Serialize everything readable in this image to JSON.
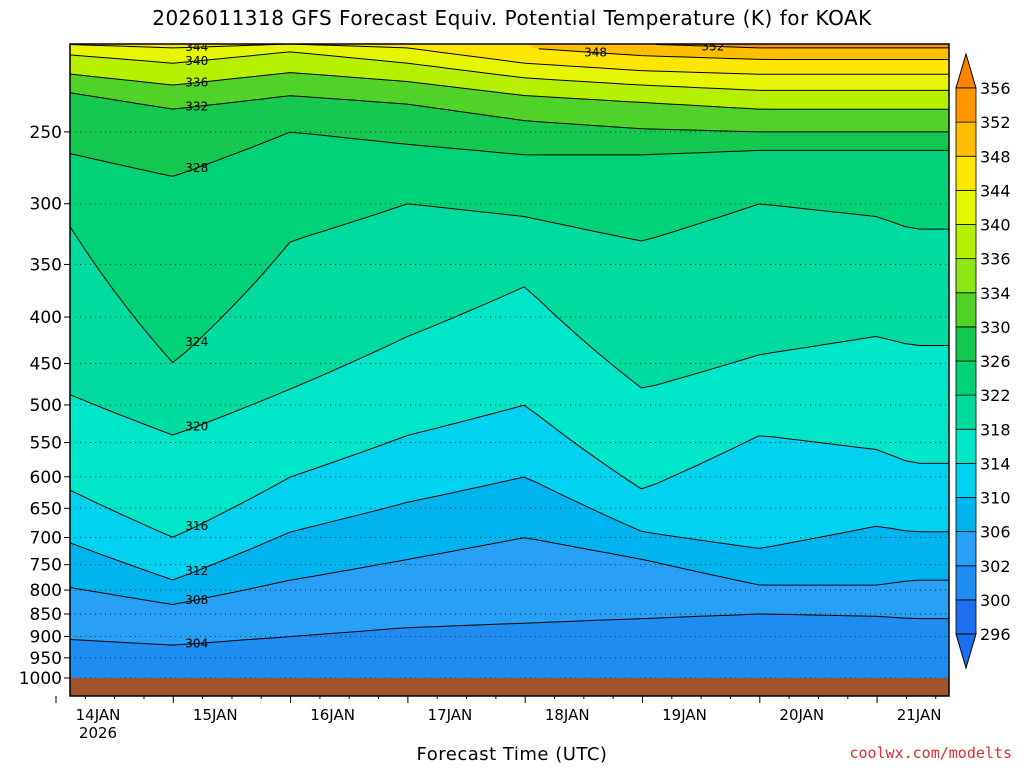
{
  "chart_data": {
    "type": "heatmap",
    "title": "2026011318 GFS Forecast Equiv. Potential Temperature (K) for KOAK",
    "xlabel": "Forecast Time (UTC)",
    "ylabel": "",
    "x_ticks": [
      "14JAN",
      "15JAN",
      "16JAN",
      "17JAN",
      "18JAN",
      "19JAN",
      "20JAN",
      "21JAN"
    ],
    "x_tick_sublabel": "2026",
    "y_ticks": [
      250,
      300,
      350,
      400,
      450,
      500,
      550,
      600,
      650,
      700,
      750,
      800,
      850,
      900,
      950,
      1000
    ],
    "y_scale": "log-pressure (inverted)",
    "ylim": [
      1000,
      200
    ],
    "grid": "dotted horizontal at pressure levels",
    "colorbar": {
      "levels": [
        296,
        300,
        302,
        306,
        310,
        314,
        318,
        322,
        326,
        330,
        334,
        336,
        340,
        344,
        348,
        352,
        356
      ],
      "colors": [
        "#1e6ef0",
        "#1e8cf0",
        "#28a0f5",
        "#00b4f0",
        "#00d2f0",
        "#00e6c8",
        "#00dca0",
        "#00d278",
        "#14c850",
        "#50d228",
        "#8ce614",
        "#b4f000",
        "#e6f500",
        "#ffe600",
        "#ffbe00",
        "#ff9600",
        "#ff8200"
      ]
    },
    "series": [
      {
        "name": "304",
        "x": [
          0,
          1,
          2,
          3,
          4,
          5,
          6,
          7,
          7.3
        ],
        "y": [
          905,
          920,
          900,
          880,
          870,
          860,
          850,
          855,
          860
        ]
      },
      {
        "name": "308",
        "x": [
          0,
          1,
          2,
          3,
          4,
          5,
          6,
          7,
          7.3
        ],
        "y": [
          790,
          830,
          780,
          740,
          700,
          740,
          790,
          790,
          780
        ]
      },
      {
        "name": "312",
        "x": [
          0,
          1,
          2,
          3,
          4,
          5,
          6,
          7,
          7.3
        ],
        "y": [
          700,
          780,
          690,
          640,
          600,
          690,
          720,
          680,
          690
        ]
      },
      {
        "name": "316",
        "x": [
          0,
          1,
          2,
          3,
          4,
          5,
          6,
          7,
          7.3
        ],
        "y": [
          610,
          700,
          600,
          540,
          500,
          620,
          540,
          560,
          580
        ]
      },
      {
        "name": "320",
        "x": [
          0,
          1,
          2,
          3,
          4,
          5,
          6,
          7,
          7.3
        ],
        "y": [
          480,
          540,
          480,
          420,
          370,
          480,
          440,
          420,
          430
        ]
      },
      {
        "name": "324",
        "x": [
          0,
          1,
          2,
          3,
          4,
          5,
          6,
          7,
          7.3
        ],
        "y": [
          300,
          450,
          330,
          300,
          310,
          330,
          300,
          310,
          320
        ]
      },
      {
        "name": "328",
        "x": [
          0,
          1,
          2,
          3,
          4,
          5,
          6,
          7,
          7.3
        ],
        "y": [
          262,
          280,
          250,
          258,
          265,
          265,
          262,
          262,
          262
        ]
      },
      {
        "name": "332",
        "x": [
          0,
          1,
          2,
          3,
          4,
          5,
          6,
          7,
          7.3
        ],
        "y": [
          225,
          236,
          228,
          233,
          243,
          248,
          250,
          250,
          250
        ]
      },
      {
        "name": "336",
        "x": [
          0,
          1,
          2,
          3,
          4,
          5,
          6,
          7,
          7.3
        ],
        "y": [
          215,
          222,
          215,
          220,
          228,
          232,
          236,
          236,
          236
        ]
      },
      {
        "name": "340",
        "x": [
          0,
          1,
          2,
          3,
          4,
          5,
          6,
          7,
          7.3
        ],
        "y": [
          205,
          210,
          204,
          210,
          218,
          222,
          225,
          225,
          225
        ]
      },
      {
        "name": "344",
        "x": [
          0,
          1,
          2,
          3,
          4,
          5,
          6,
          7,
          7.3
        ],
        "y": [
          200,
          202,
          200,
          202,
          210,
          214,
          216,
          216,
          216
        ]
      },
      {
        "name": "348",
        "x": [
          4,
          5,
          6,
          7,
          7.3
        ],
        "y": [
          202,
          206,
          208,
          208,
          208
        ]
      },
      {
        "name": "352",
        "x": [
          5,
          6,
          7,
          7.3
        ],
        "y": [
          200,
          202,
          202,
          202
        ]
      }
    ]
  },
  "footer": {
    "credit": "coolwx.com/modelts"
  }
}
